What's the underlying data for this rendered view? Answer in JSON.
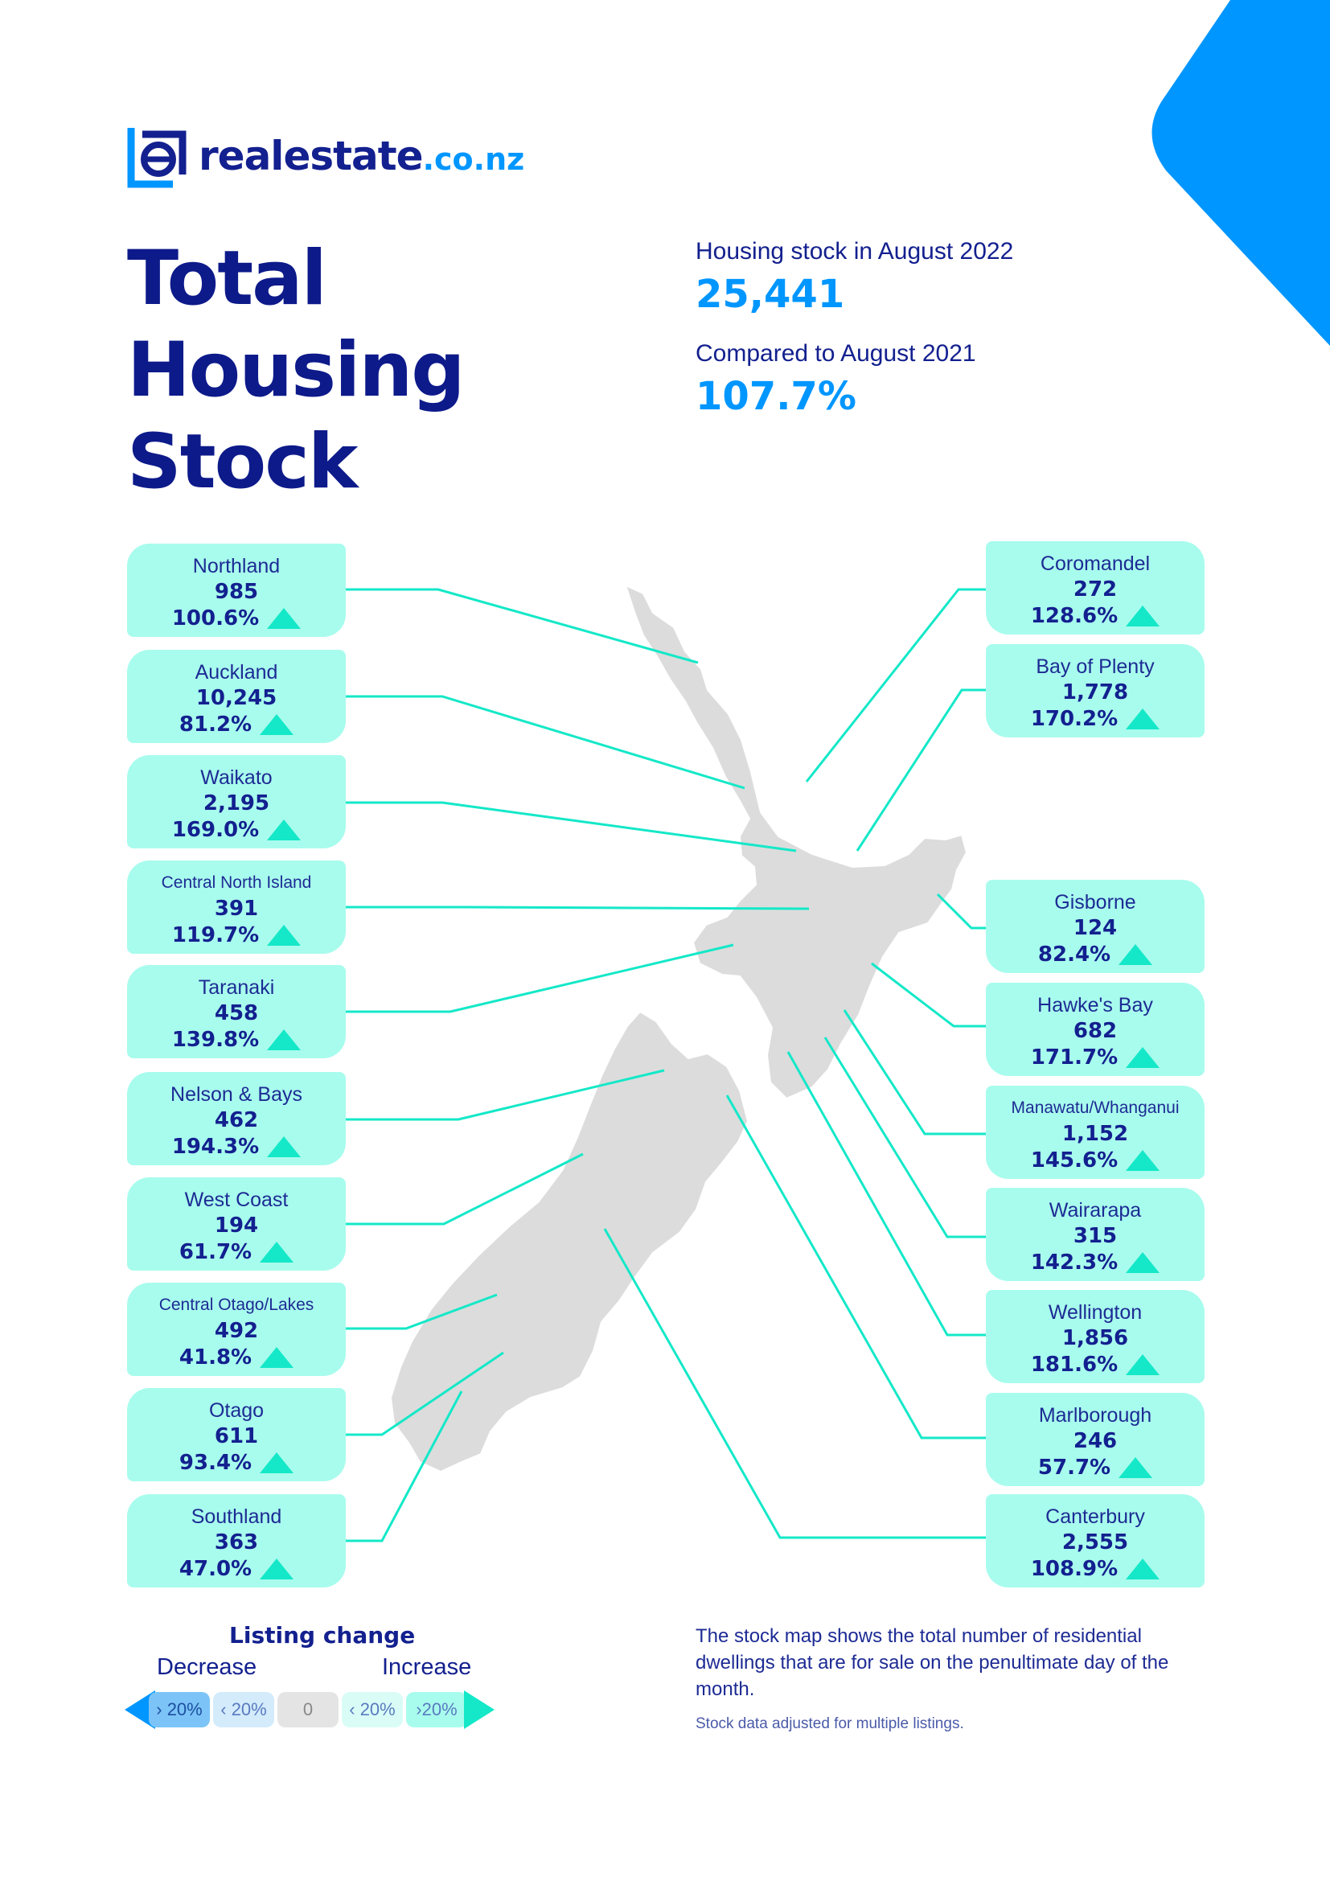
{
  "brand": {
    "logo_name": "realestate",
    "logo_tld": ".co.nz",
    "accent": "#0096ff",
    "navy": "#0d1a8a",
    "mint": "#a8fced",
    "teal": "#14e8c8"
  },
  "title": {
    "line1": "Total",
    "line2": "Housing",
    "line3": "Stock"
  },
  "summary": {
    "stock_label": "Housing stock in August 2022",
    "stock_value": "25,441",
    "compare_label": "Compared to August 2021",
    "compare_value": "107.7%"
  },
  "regions": [
    {
      "name": "Northland",
      "count": "985",
      "change": "100.6%",
      "direction": "increase"
    },
    {
      "name": "Auckland",
      "count": "10,245",
      "change": "81.2%",
      "direction": "increase"
    },
    {
      "name": "Waikato",
      "count": "2,195",
      "change": "169.0%",
      "direction": "increase"
    },
    {
      "name": "Central North Island",
      "count": "391",
      "change": "119.7%",
      "direction": "increase"
    },
    {
      "name": "Taranaki",
      "count": "458",
      "change": "139.8%",
      "direction": "increase"
    },
    {
      "name": "Nelson & Bays",
      "count": "462",
      "change": "194.3%",
      "direction": "increase"
    },
    {
      "name": "West Coast",
      "count": "194",
      "change": "61.7%",
      "direction": "increase"
    },
    {
      "name": "Central Otago/Lakes",
      "count": "492",
      "change": "41.8%",
      "direction": "increase"
    },
    {
      "name": "Otago",
      "count": "611",
      "change": "93.4%",
      "direction": "increase"
    },
    {
      "name": "Southland",
      "count": "363",
      "change": "47.0%",
      "direction": "increase"
    },
    {
      "name": "Coromandel",
      "count": "272",
      "change": "128.6%",
      "direction": "increase"
    },
    {
      "name": "Bay of Plenty",
      "count": "1,778",
      "change": "170.2%",
      "direction": "increase"
    },
    {
      "name": "Gisborne",
      "count": "124",
      "change": "82.4%",
      "direction": "increase"
    },
    {
      "name": "Hawke's Bay",
      "count": "682",
      "change": "171.7%",
      "direction": "increase"
    },
    {
      "name": "Manawatu/Whanganui",
      "count": "1,152",
      "change": "145.6%",
      "direction": "increase"
    },
    {
      "name": "Wairarapa",
      "count": "315",
      "change": "142.3%",
      "direction": "increase"
    },
    {
      "name": "Wellington",
      "count": "1,856",
      "change": "181.6%",
      "direction": "increase"
    },
    {
      "name": "Marlborough",
      "count": "246",
      "change": "57.7%",
      "direction": "increase"
    },
    {
      "name": "Canterbury",
      "count": "2,555",
      "change": "108.9%",
      "direction": "increase"
    }
  ],
  "legend": {
    "title": "Listing change",
    "decrease_label": "Decrease",
    "increase_label": "Increase",
    "chips": [
      {
        "text": "› 20%",
        "color": "#7cc4f7"
      },
      {
        "text": "‹ 20%",
        "color": "#d3ebfb"
      },
      {
        "text": "0",
        "color": "#e4e4e4"
      },
      {
        "text": "‹ 20%",
        "color": "#d9fdf6"
      },
      {
        "text": "›20%",
        "color": "#a8fced"
      }
    ]
  },
  "footnote": "The stock map shows the total number of residential dwellings that are for sale on the penultimate day of the month.",
  "footnote_small": "Stock data adjusted for multiple listings."
}
